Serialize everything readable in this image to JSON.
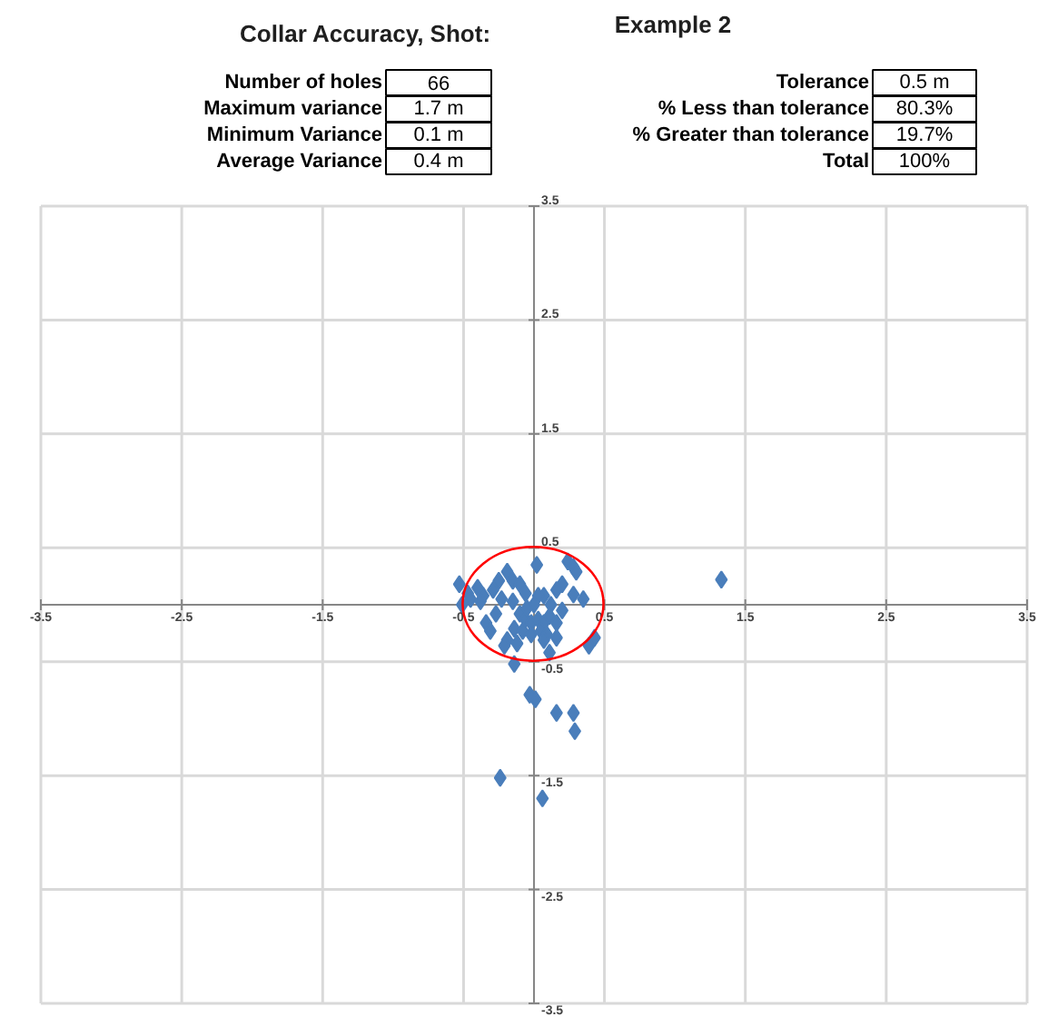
{
  "chart_data": {
    "type": "scatter",
    "title": "Collar Accuracy, Shot:",
    "subtitle": "Example 2",
    "annotations": [
      "Number of holes",
      "66",
      "Maximum variance",
      "1.7 m",
      "Minimum Variance",
      "0.1 m",
      "Average Variance",
      "0.4 m",
      "Tolerance",
      "0.5 m",
      "% Less than tolerance",
      "80.3%",
      "% Greater than tolerance",
      "19.7%",
      "Total",
      "100%"
    ],
    "xlim": [
      -3.5,
      3.5
    ],
    "ylim": [
      -3.5,
      3.5
    ],
    "xticks": [
      -3.5,
      -2.5,
      -1.5,
      -0.5,
      0.5,
      1.5,
      2.5,
      3.5
    ],
    "yticks": [
      -3.5,
      -2.5,
      -1.5,
      -0.5,
      0.5,
      1.5,
      2.5,
      3.5
    ],
    "grid": true,
    "series": [
      {
        "marker": "diamond",
        "color": "#4a7ebb",
        "x": [
          0.02,
          0.24,
          0.28,
          0.3,
          -0.53,
          -0.47,
          -0.45,
          -0.51,
          -0.19,
          -0.25,
          -0.15,
          -0.1,
          -0.29,
          -0.36,
          -0.38,
          -0.23,
          -0.15,
          -0.06,
          0.2,
          0.16,
          0.07,
          0.28,
          0.03,
          -0.27,
          -0.34,
          -0.31,
          -0.1,
          -0.06,
          -0.02,
          0.03,
          0.07,
          0.11,
          0.16,
          -0.14,
          -0.08,
          -0.02,
          0.05,
          0.09,
          -0.19,
          -0.21,
          -0.12,
          -0.14,
          0.07,
          0.16,
          0.11,
          0.43,
          0.39,
          0.01,
          -0.03,
          0.16,
          0.28,
          0.29,
          1.33,
          -0.24,
          0.06,
          0.0,
          0.12,
          -0.05,
          0.2,
          -0.4,
          0.35
        ],
        "values": [
          0.35,
          0.38,
          0.33,
          0.29,
          0.18,
          0.1,
          0.05,
          0.0,
          0.29,
          0.21,
          0.21,
          0.18,
          0.13,
          0.08,
          0.03,
          0.05,
          0.03,
          0.1,
          0.18,
          0.13,
          0.08,
          0.09,
          0.08,
          -0.08,
          -0.16,
          -0.23,
          -0.08,
          -0.13,
          -0.16,
          -0.13,
          -0.16,
          -0.1,
          -0.16,
          -0.21,
          -0.23,
          -0.26,
          -0.23,
          -0.26,
          -0.31,
          -0.36,
          -0.34,
          -0.52,
          -0.31,
          -0.29,
          -0.42,
          -0.29,
          -0.36,
          -0.83,
          -0.79,
          -0.95,
          -0.95,
          -1.11,
          0.22,
          -1.52,
          -1.7,
          0.0,
          0.0,
          -0.03,
          -0.05,
          0.15,
          0.05
        ]
      }
    ]
  }
}
